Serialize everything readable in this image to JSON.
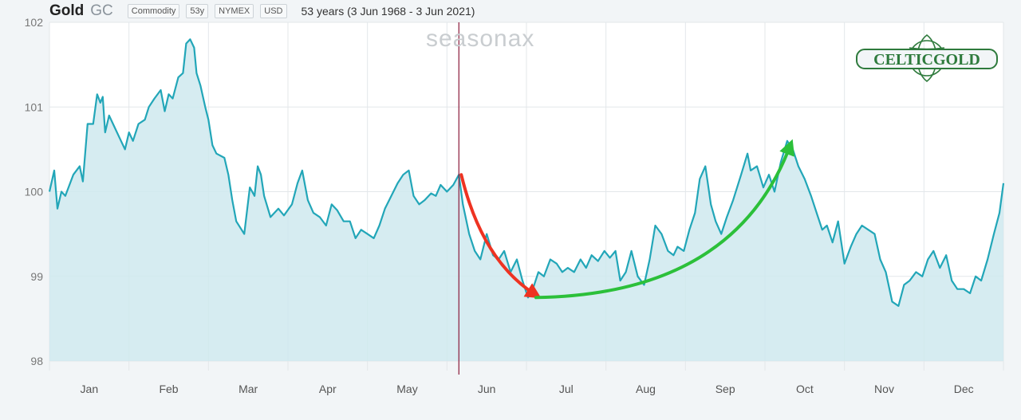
{
  "header": {
    "name": "Gold",
    "ticker": "GC",
    "badges": [
      "Commodity",
      "53y",
      "NYMEX",
      "USD"
    ],
    "range": "53 years (3 Jun 1968 - 3 Jun 2021)"
  },
  "watermark": "seasonax",
  "logo_text": "CELTICGOLD",
  "colors": {
    "line": "#22a6b8",
    "fill": "#cfe9ee",
    "down_arrow": "#ee3322",
    "up_arrow": "#2cc03a",
    "today_line": "#8a1a3a",
    "logo": "#2e7a3c"
  },
  "chart_data": {
    "type": "line",
    "title": "",
    "xlabel": "",
    "ylabel": "",
    "ylim": [
      98,
      102
    ],
    "yticks": [
      98,
      99,
      100,
      101,
      102
    ],
    "months": [
      "Jan",
      "Feb",
      "Mar",
      "Apr",
      "May",
      "Jun",
      "Jul",
      "Aug",
      "Sep",
      "Oct",
      "Nov",
      "Dec"
    ],
    "x_domain": [
      0,
      12
    ],
    "today_marker_x": 5.15,
    "grid": true,
    "legend": "none",
    "points": [
      [
        0.0,
        100.0
      ],
      [
        0.06,
        100.25
      ],
      [
        0.1,
        99.8
      ],
      [
        0.15,
        100.0
      ],
      [
        0.2,
        99.95
      ],
      [
        0.3,
        100.2
      ],
      [
        0.38,
        100.3
      ],
      [
        0.42,
        100.12
      ],
      [
        0.48,
        100.8
      ],
      [
        0.55,
        100.8
      ],
      [
        0.6,
        101.15
      ],
      [
        0.64,
        101.05
      ],
      [
        0.67,
        101.12
      ],
      [
        0.7,
        100.7
      ],
      [
        0.75,
        100.9
      ],
      [
        0.8,
        100.8
      ],
      [
        0.9,
        100.6
      ],
      [
        0.95,
        100.5
      ],
      [
        1.0,
        100.7
      ],
      [
        1.05,
        100.6
      ],
      [
        1.12,
        100.8
      ],
      [
        1.2,
        100.85
      ],
      [
        1.25,
        101.0
      ],
      [
        1.32,
        101.1
      ],
      [
        1.4,
        101.2
      ],
      [
        1.45,
        100.95
      ],
      [
        1.5,
        101.15
      ],
      [
        1.55,
        101.1
      ],
      [
        1.62,
        101.35
      ],
      [
        1.68,
        101.4
      ],
      [
        1.72,
        101.75
      ],
      [
        1.77,
        101.8
      ],
      [
        1.82,
        101.7
      ],
      [
        1.85,
        101.4
      ],
      [
        1.9,
        101.25
      ],
      [
        1.96,
        101.0
      ],
      [
        2.0,
        100.85
      ],
      [
        2.05,
        100.55
      ],
      [
        2.1,
        100.45
      ],
      [
        2.2,
        100.4
      ],
      [
        2.25,
        100.2
      ],
      [
        2.3,
        99.9
      ],
      [
        2.35,
        99.65
      ],
      [
        2.45,
        99.5
      ],
      [
        2.52,
        100.05
      ],
      [
        2.58,
        99.95
      ],
      [
        2.62,
        100.3
      ],
      [
        2.66,
        100.2
      ],
      [
        2.7,
        99.95
      ],
      [
        2.78,
        99.7
      ],
      [
        2.88,
        99.8
      ],
      [
        2.95,
        99.72
      ],
      [
        3.05,
        99.85
      ],
      [
        3.12,
        100.1
      ],
      [
        3.18,
        100.25
      ],
      [
        3.25,
        99.9
      ],
      [
        3.32,
        99.75
      ],
      [
        3.4,
        99.7
      ],
      [
        3.48,
        99.6
      ],
      [
        3.55,
        99.85
      ],
      [
        3.62,
        99.78
      ],
      [
        3.7,
        99.65
      ],
      [
        3.78,
        99.65
      ],
      [
        3.85,
        99.45
      ],
      [
        3.92,
        99.55
      ],
      [
        4.0,
        99.5
      ],
      [
        4.08,
        99.45
      ],
      [
        4.15,
        99.6
      ],
      [
        4.22,
        99.8
      ],
      [
        4.3,
        99.95
      ],
      [
        4.38,
        100.1
      ],
      [
        4.45,
        100.2
      ],
      [
        4.52,
        100.25
      ],
      [
        4.58,
        99.95
      ],
      [
        4.65,
        99.85
      ],
      [
        4.72,
        99.9
      ],
      [
        4.8,
        99.98
      ],
      [
        4.86,
        99.95
      ],
      [
        4.92,
        100.08
      ],
      [
        5.0,
        100.0
      ],
      [
        5.08,
        100.08
      ],
      [
        5.15,
        100.2
      ],
      [
        5.2,
        99.85
      ],
      [
        5.28,
        99.5
      ],
      [
        5.35,
        99.3
      ],
      [
        5.42,
        99.2
      ],
      [
        5.5,
        99.5
      ],
      [
        5.58,
        99.25
      ],
      [
        5.65,
        99.2
      ],
      [
        5.72,
        99.3
      ],
      [
        5.8,
        99.05
      ],
      [
        5.88,
        99.2
      ],
      [
        5.95,
        98.95
      ],
      [
        6.02,
        98.75
      ],
      [
        6.08,
        98.85
      ],
      [
        6.15,
        99.05
      ],
      [
        6.22,
        99.0
      ],
      [
        6.3,
        99.2
      ],
      [
        6.38,
        99.15
      ],
      [
        6.45,
        99.05
      ],
      [
        6.52,
        99.1
      ],
      [
        6.6,
        99.05
      ],
      [
        6.68,
        99.2
      ],
      [
        6.75,
        99.1
      ],
      [
        6.82,
        99.25
      ],
      [
        6.9,
        99.18
      ],
      [
        6.98,
        99.3
      ],
      [
        7.05,
        99.22
      ],
      [
        7.12,
        99.3
      ],
      [
        7.18,
        98.95
      ],
      [
        7.25,
        99.05
      ],
      [
        7.32,
        99.3
      ],
      [
        7.4,
        99.0
      ],
      [
        7.48,
        98.9
      ],
      [
        7.55,
        99.2
      ],
      [
        7.62,
        99.6
      ],
      [
        7.7,
        99.5
      ],
      [
        7.78,
        99.3
      ],
      [
        7.85,
        99.25
      ],
      [
        7.9,
        99.35
      ],
      [
        7.98,
        99.3
      ],
      [
        8.05,
        99.55
      ],
      [
        8.12,
        99.75
      ],
      [
        8.18,
        100.15
      ],
      [
        8.25,
        100.3
      ],
      [
        8.32,
        99.85
      ],
      [
        8.38,
        99.65
      ],
      [
        8.45,
        99.5
      ],
      [
        8.52,
        99.7
      ],
      [
        8.6,
        99.9
      ],
      [
        8.7,
        100.2
      ],
      [
        8.78,
        100.45
      ],
      [
        8.82,
        100.25
      ],
      [
        8.9,
        100.3
      ],
      [
        8.98,
        100.05
      ],
      [
        9.05,
        100.2
      ],
      [
        9.12,
        100.0
      ],
      [
        9.2,
        100.35
      ],
      [
        9.28,
        100.6
      ],
      [
        9.35,
        100.5
      ],
      [
        9.42,
        100.3
      ],
      [
        9.5,
        100.15
      ],
      [
        9.58,
        99.95
      ],
      [
        9.65,
        99.75
      ],
      [
        9.72,
        99.55
      ],
      [
        9.78,
        99.6
      ],
      [
        9.85,
        99.4
      ],
      [
        9.92,
        99.65
      ],
      [
        10.0,
        99.15
      ],
      [
        10.08,
        99.35
      ],
      [
        10.15,
        99.5
      ],
      [
        10.22,
        99.6
      ],
      [
        10.3,
        99.55
      ],
      [
        10.38,
        99.5
      ],
      [
        10.45,
        99.2
      ],
      [
        10.52,
        99.05
      ],
      [
        10.6,
        98.7
      ],
      [
        10.68,
        98.65
      ],
      [
        10.75,
        98.9
      ],
      [
        10.82,
        98.95
      ],
      [
        10.9,
        99.05
      ],
      [
        10.98,
        99.0
      ],
      [
        11.05,
        99.2
      ],
      [
        11.12,
        99.3
      ],
      [
        11.2,
        99.1
      ],
      [
        11.28,
        99.25
      ],
      [
        11.35,
        98.95
      ],
      [
        11.42,
        98.85
      ],
      [
        11.5,
        98.85
      ],
      [
        11.58,
        98.8
      ],
      [
        11.65,
        99.0
      ],
      [
        11.72,
        98.95
      ],
      [
        11.8,
        99.2
      ],
      [
        11.88,
        99.5
      ],
      [
        11.95,
        99.75
      ],
      [
        12.0,
        100.1
      ]
    ],
    "annotations": [
      {
        "kind": "arrow",
        "direction": "down",
        "color": "red",
        "from": [
          5.18,
          100.2
        ],
        "to": [
          6.12,
          98.78
        ]
      },
      {
        "kind": "arrow",
        "direction": "up",
        "color": "green",
        "from": [
          6.12,
          98.75
        ],
        "to": [
          9.32,
          100.55
        ]
      }
    ]
  }
}
